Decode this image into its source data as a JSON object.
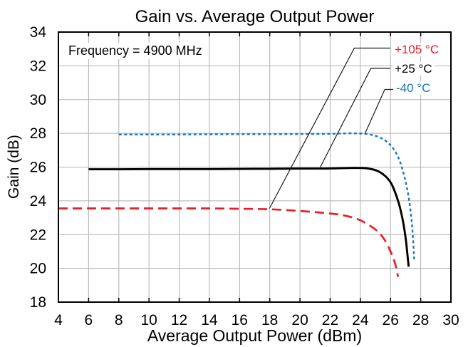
{
  "chart_data": {
    "type": "line",
    "title": "Gain vs. Average Output Power",
    "xlabel": "Average Output Power (dBm)",
    "ylabel": "Gain (dB)",
    "xlim": [
      4,
      30
    ],
    "ylim": [
      18,
      34
    ],
    "xtick_step": 2,
    "ytick_step": 2,
    "grid": true,
    "legend_position": "top-right-inside",
    "annotation": {
      "text": "Frequency = 4900 MHz"
    },
    "colors": {
      "grid": "#b0b0b0",
      "axis": "#000000",
      "callout": "#1a1a1a"
    },
    "series": [
      {
        "name": "+105 °C",
        "color": "#ed1c24",
        "style": "dashed",
        "width": 2.7,
        "points": [
          [
            4,
            23.55
          ],
          [
            6,
            23.55
          ],
          [
            8,
            23.55
          ],
          [
            10,
            23.55
          ],
          [
            12,
            23.55
          ],
          [
            14,
            23.55
          ],
          [
            16,
            23.53
          ],
          [
            18,
            23.5
          ],
          [
            20,
            23.4
          ],
          [
            22,
            23.25
          ],
          [
            23,
            23.12
          ],
          [
            24,
            22.85
          ],
          [
            25,
            22.3
          ],
          [
            25.6,
            21.7
          ],
          [
            26,
            21.0
          ],
          [
            26.3,
            20.3
          ],
          [
            26.5,
            19.5
          ]
        ],
        "callout": [
          [
            25.98,
            33.05
          ],
          [
            23.6,
            33.05
          ],
          [
            17.98,
            23.55
          ]
        ]
      },
      {
        "name": "+25 °C",
        "color": "#000000",
        "style": "solid",
        "width": 2.9,
        "points": [
          [
            6,
            25.87
          ],
          [
            8,
            25.87
          ],
          [
            10,
            25.88
          ],
          [
            12,
            25.88
          ],
          [
            14,
            25.88
          ],
          [
            16,
            25.89
          ],
          [
            18,
            25.9
          ],
          [
            20,
            25.91
          ],
          [
            22,
            25.92
          ],
          [
            23.5,
            25.95
          ],
          [
            24.5,
            25.92
          ],
          [
            25.3,
            25.7
          ],
          [
            26,
            25.1
          ],
          [
            26.5,
            24.0
          ],
          [
            26.8,
            22.9
          ],
          [
            27,
            21.8
          ],
          [
            27.1,
            21.0
          ],
          [
            27.2,
            20.1
          ]
        ],
        "callout": [
          [
            25.98,
            31.85
          ],
          [
            24.7,
            31.85
          ],
          [
            21.3,
            25.91
          ]
        ]
      },
      {
        "name": "-40 °C",
        "color": "#1b75bc",
        "style": "dotted",
        "width": 2.4,
        "points": [
          [
            8,
            27.93
          ],
          [
            10,
            27.93
          ],
          [
            12,
            27.93
          ],
          [
            14,
            27.94
          ],
          [
            16,
            27.95
          ],
          [
            18,
            27.95
          ],
          [
            20,
            27.96
          ],
          [
            22,
            27.97
          ],
          [
            23.5,
            28.0
          ],
          [
            24.5,
            27.95
          ],
          [
            25.3,
            27.75
          ],
          [
            26,
            27.3
          ],
          [
            26.5,
            26.6
          ],
          [
            26.9,
            25.5
          ],
          [
            27.2,
            24.2
          ],
          [
            27.4,
            22.8
          ],
          [
            27.5,
            21.6
          ],
          [
            27.57,
            20.5
          ]
        ],
        "callout": [
          [
            26.18,
            30.6
          ],
          [
            25.62,
            30.6
          ],
          [
            24.3,
            27.97
          ]
        ]
      }
    ]
  }
}
